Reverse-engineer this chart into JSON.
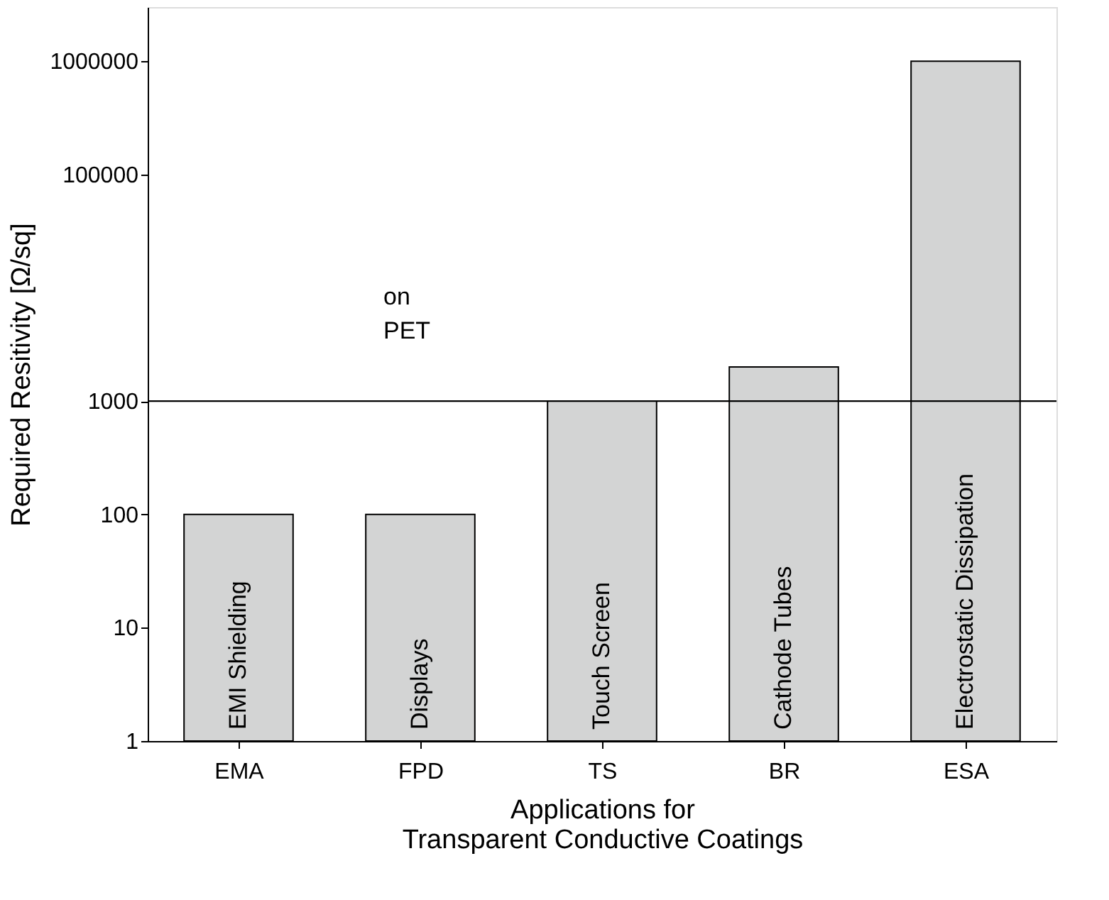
{
  "chart_data": {
    "type": "bar",
    "xlabel": "Applications for\nTransparent Conductive Coatings",
    "ylabel": "Required Resitivity [Ω/sq]",
    "categories": [
      "EMA",
      "FPD",
      "TS",
      "BR",
      "ESA"
    ],
    "values": [
      100,
      100,
      1000,
      2000,
      1000000
    ],
    "color": "#d3d4d4",
    "log": true,
    "ylim": [
      1,
      3000000
    ],
    "yticks": [
      1,
      10,
      100,
      1000,
      100000,
      1000000
    ],
    "ref_lines": [
      {
        "axis": "y",
        "value": 1000,
        "color": "#000000"
      }
    ],
    "annotations": [
      "EMI Shielding",
      "Displays",
      "Touch Screen",
      "Cathode Tubes",
      "Electrostatic Dissipation",
      "on\nPET"
    ]
  }
}
